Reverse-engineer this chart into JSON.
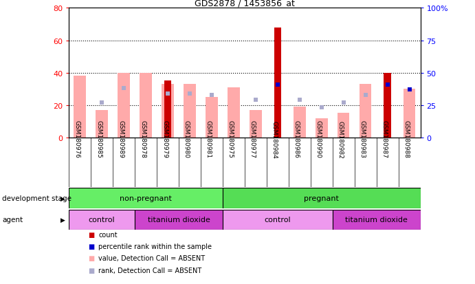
{
  "title": "GDS2878 / 1453856_at",
  "samples": [
    "GSM180976",
    "GSM180985",
    "GSM180989",
    "GSM180978",
    "GSM180979",
    "GSM180980",
    "GSM180981",
    "GSM180975",
    "GSM180977",
    "GSM180984",
    "GSM180986",
    "GSM180990",
    "GSM180982",
    "GSM180983",
    "GSM180987",
    "GSM180988"
  ],
  "count_values": [
    0,
    0,
    0,
    0,
    35,
    0,
    0,
    0,
    0,
    68,
    0,
    0,
    0,
    0,
    40,
    0
  ],
  "rank_values": [
    0,
    0,
    0,
    0,
    0,
    0,
    0,
    0,
    0,
    41,
    0,
    0,
    0,
    0,
    41,
    37
  ],
  "value_absent": [
    38,
    17,
    40,
    40,
    33,
    33,
    25,
    31,
    17,
    0,
    19,
    12,
    15,
    33,
    0,
    30
  ],
  "rank_absent_pct": [
    0,
    27,
    38,
    0,
    34,
    34,
    33,
    0,
    29,
    0,
    29,
    23,
    27,
    33,
    0,
    0
  ],
  "left_ylim": [
    0,
    80
  ],
  "right_ylim": [
    0,
    100
  ],
  "left_yticks": [
    0,
    20,
    40,
    60,
    80
  ],
  "right_yticks": [
    0,
    25,
    50,
    75,
    100
  ],
  "right_yticklabels": [
    "0",
    "25",
    "50",
    "75",
    "100%"
  ],
  "dev_groups": [
    {
      "label": "non-pregnant",
      "start": 0,
      "end": 7,
      "color": "#66ee66"
    },
    {
      "label": "pregnant",
      "start": 7,
      "end": 16,
      "color": "#55dd55"
    }
  ],
  "agent_groups": [
    {
      "label": "control",
      "start": 0,
      "end": 3,
      "color": "#ee99ee"
    },
    {
      "label": "titanium dioxide",
      "start": 3,
      "end": 7,
      "color": "#cc44cc"
    },
    {
      "label": "control",
      "start": 7,
      "end": 12,
      "color": "#ee99ee"
    },
    {
      "label": "titanium dioxide",
      "start": 12,
      "end": 16,
      "color": "#cc44cc"
    }
  ],
  "color_count": "#cc0000",
  "color_rank": "#0000cc",
  "color_value_absent": "#ffaaaa",
  "color_rank_absent": "#aaaacc"
}
